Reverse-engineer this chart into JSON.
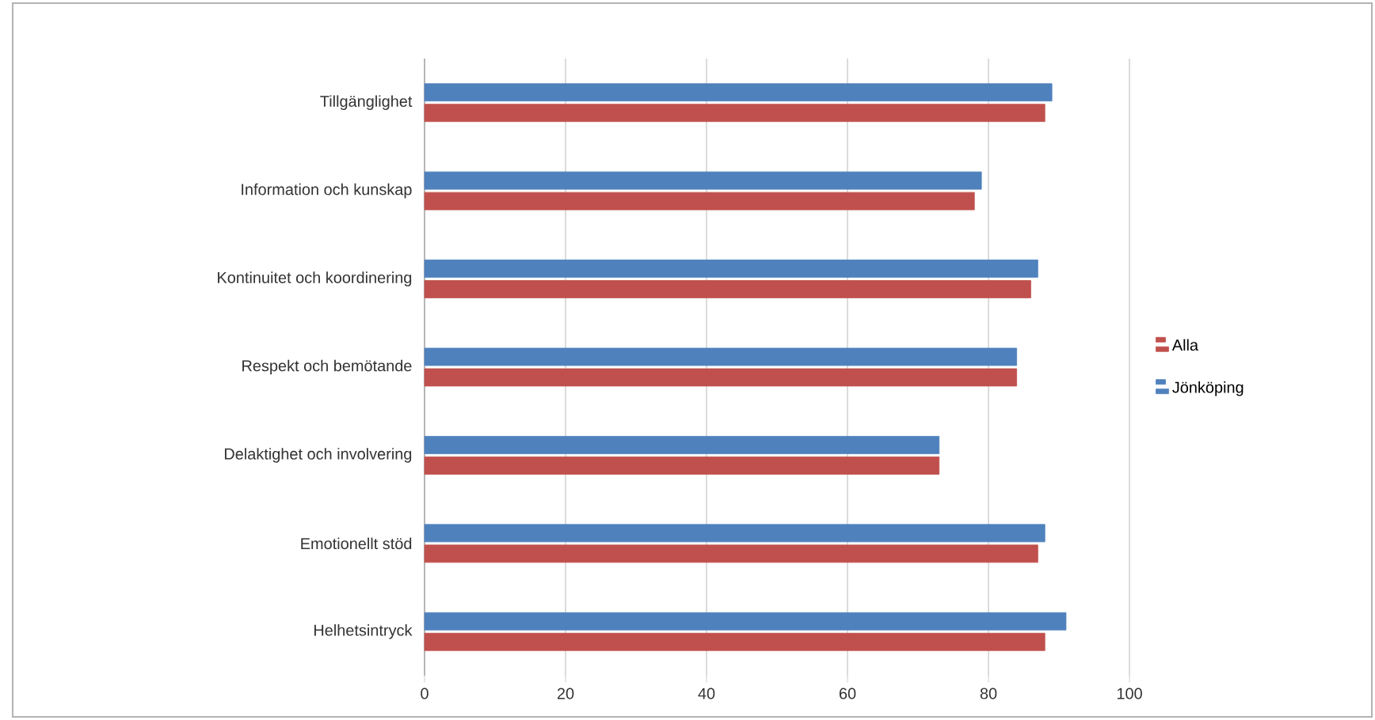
{
  "chart_data": {
    "type": "bar",
    "orientation": "horizontal",
    "categories": [
      "Tillgänglighet",
      "Information och kunskap",
      "Kontinuitet och koordinering",
      "Respekt och bemötande",
      "Delaktighet och involvering",
      "Emotionellt stöd",
      "Helhetsintryck"
    ],
    "series": [
      {
        "name": "Alla",
        "color": "#c0504d",
        "values": [
          88,
          78,
          86,
          84,
          73,
          87,
          88
        ]
      },
      {
        "name": "Jönköping",
        "color": "#4f81bd",
        "values": [
          89,
          79,
          87,
          84,
          73,
          88,
          91
        ]
      }
    ],
    "xlim": [
      0,
      100
    ],
    "xticks": [
      0,
      20,
      40,
      60,
      80,
      100
    ],
    "grid": "x",
    "legend": "right"
  }
}
